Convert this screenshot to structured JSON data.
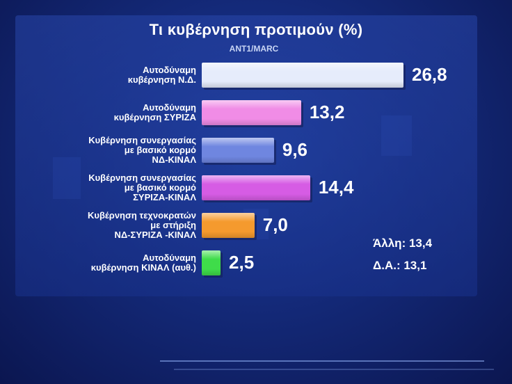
{
  "chart_data": {
    "type": "bar",
    "orientation": "horizontal",
    "title": "Τι κυβέρνηση προτιμούν (%)",
    "subtitle": "ANT1/MARC",
    "categories": [
      [
        "Αυτοδύναμη",
        "κυβέρνηση Ν.Δ."
      ],
      [
        "Αυτοδύναμη",
        "κυβέρνηση ΣΥΡΙΖΑ"
      ],
      [
        "Κυβέρνηση συνεργασίας",
        "με βασικό κορμό",
        "ΝΔ-ΚΙΝΑΛ"
      ],
      [
        "Κυβέρνηση συνεργασίας",
        "με βασικό κορμό",
        "ΣΥΡΙΖΑ-ΚΙΝΑΛ"
      ],
      [
        "Κυβέρνηση τεχνοκρατών",
        "με στήριξη",
        "ΝΔ-ΣΥΡΙΖΑ -ΚΙΝΑΛ"
      ],
      [
        "Αυτοδύναμη",
        "κυβέρνηση ΚΙΝΑΛ (αυθ.)"
      ]
    ],
    "values": [
      26.8,
      13.2,
      9.6,
      14.4,
      7.0,
      2.5
    ],
    "value_labels": [
      "26,8",
      "13,2",
      "9,6",
      "14,4",
      "7,0",
      "2,5"
    ],
    "colors": [
      "#e6ecfb",
      "#f08ce6",
      "#6f86e0",
      "#d65ce4",
      "#f59a2e",
      "#3fdc4a"
    ],
    "xlim": [
      0,
      26.8
    ],
    "annotations": [
      "Άλλη: 13,4",
      "Δ.Α.: 13,1"
    ]
  }
}
